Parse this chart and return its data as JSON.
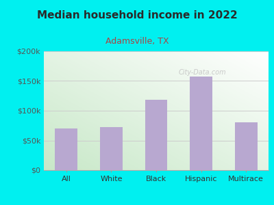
{
  "title": "Median household income in 2022",
  "subtitle": "Adamsville, TX",
  "categories": [
    "All",
    "White",
    "Black",
    "Hispanic",
    "Multirace"
  ],
  "values": [
    70000,
    72000,
    118000,
    158000,
    80000
  ],
  "bar_color": "#b8a8d0",
  "title_color": "#2a2a2a",
  "subtitle_color": "#aa4444",
  "background_outer": "#00f0f0",
  "grad_left": "#c8e8c8",
  "grad_right": "#f0f8f0",
  "ylabel_color": "#555555",
  "xlabel_color": "#333333",
  "grid_color": "#cccccc",
  "watermark": "City-Data.com",
  "ylim": [
    0,
    200000
  ],
  "yticks": [
    0,
    50000,
    100000,
    150000,
    200000
  ],
  "ytick_labels": [
    "$0",
    "$50k",
    "$100k",
    "$150k",
    "$200k"
  ]
}
